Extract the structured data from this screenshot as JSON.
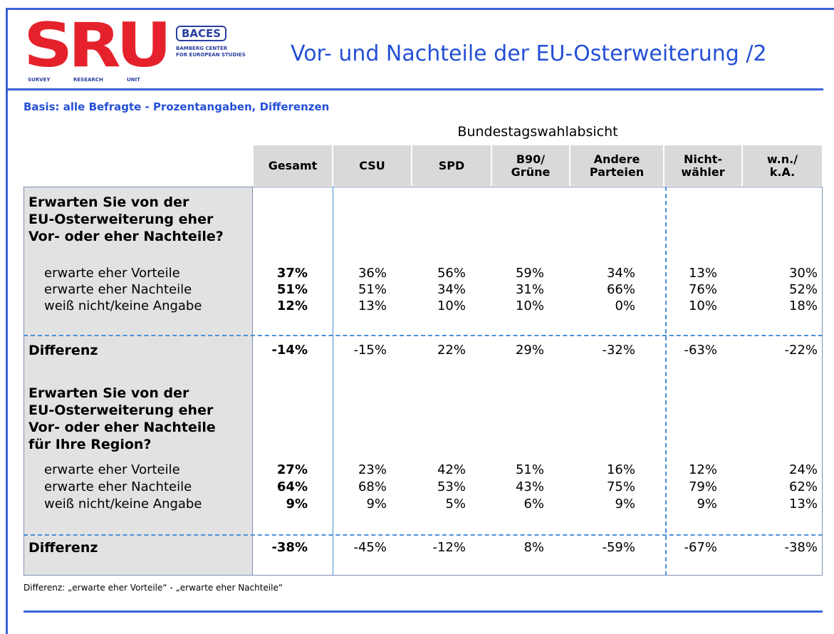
{
  "header": {
    "logo": {
      "main": "SRU",
      "badge": "BACES",
      "center": "BAMBERG CENTER\nFOR EUROPEAN STUDIES",
      "unit": [
        "SURVEY",
        "RESEARCH",
        "UNIT"
      ]
    },
    "title": "Vor- und Nachteile der EU-Osterweiterung /2"
  },
  "basis": "Basis: alle Befragte - Prozentangaben, Differenzen",
  "table": {
    "group_header": "Bundestagswahlabsicht",
    "columns": [
      "Gesamt",
      "CSU",
      "SPD",
      "B90/\nGrüne",
      "Andere\nParteien",
      "Nicht-\nwähler",
      "w.n./\nk.A."
    ],
    "sections": [
      {
        "question": "Erwarten Sie von der\nEU-Osterweiterung eher\nVor- oder eher Nachteile?",
        "rows": [
          {
            "label": "erwarte eher Vorteile",
            "values": [
              "37%",
              "36%",
              "56%",
              "59%",
              "34%",
              "13%",
              "30%"
            ]
          },
          {
            "label": "erwarte eher Nachteile",
            "values": [
              "51%",
              "51%",
              "34%",
              "31%",
              "66%",
              "76%",
              "52%"
            ]
          },
          {
            "label": "weiß nicht/keine Angabe",
            "values": [
              "12%",
              "13%",
              "10%",
              "10%",
              "0%",
              "10%",
              "18%"
            ]
          }
        ],
        "difference": {
          "label": "Differenz",
          "values": [
            "-14%",
            "-15%",
            "22%",
            "29%",
            "-32%",
            "-63%",
            "-22%"
          ]
        }
      },
      {
        "question": "Erwarten Sie von der\nEU-Osterweiterung eher\nVor- oder eher Nachteile\nfür Ihre Region?",
        "rows": [
          {
            "label": "erwarte eher Vorteile",
            "values": [
              "27%",
              "23%",
              "42%",
              "51%",
              "16%",
              "12%",
              "24%"
            ]
          },
          {
            "label": "erwarte eher Nachteile",
            "values": [
              "64%",
              "68%",
              "53%",
              "43%",
              "75%",
              "79%",
              "62%"
            ]
          },
          {
            "label": "weiß nicht/keine Angabe",
            "values": [
              "9%",
              "9%",
              "5%",
              "6%",
              "9%",
              "9%",
              "13%"
            ]
          }
        ],
        "difference": {
          "label": "Differenz",
          "values": [
            "-38%",
            "-45%",
            "-12%",
            "8%",
            "-59%",
            "-67%",
            "-38%"
          ]
        }
      }
    ]
  },
  "footnote": "Differenz: „erwarte eher Vorteile“ - „erwarte eher Nachteile“"
}
